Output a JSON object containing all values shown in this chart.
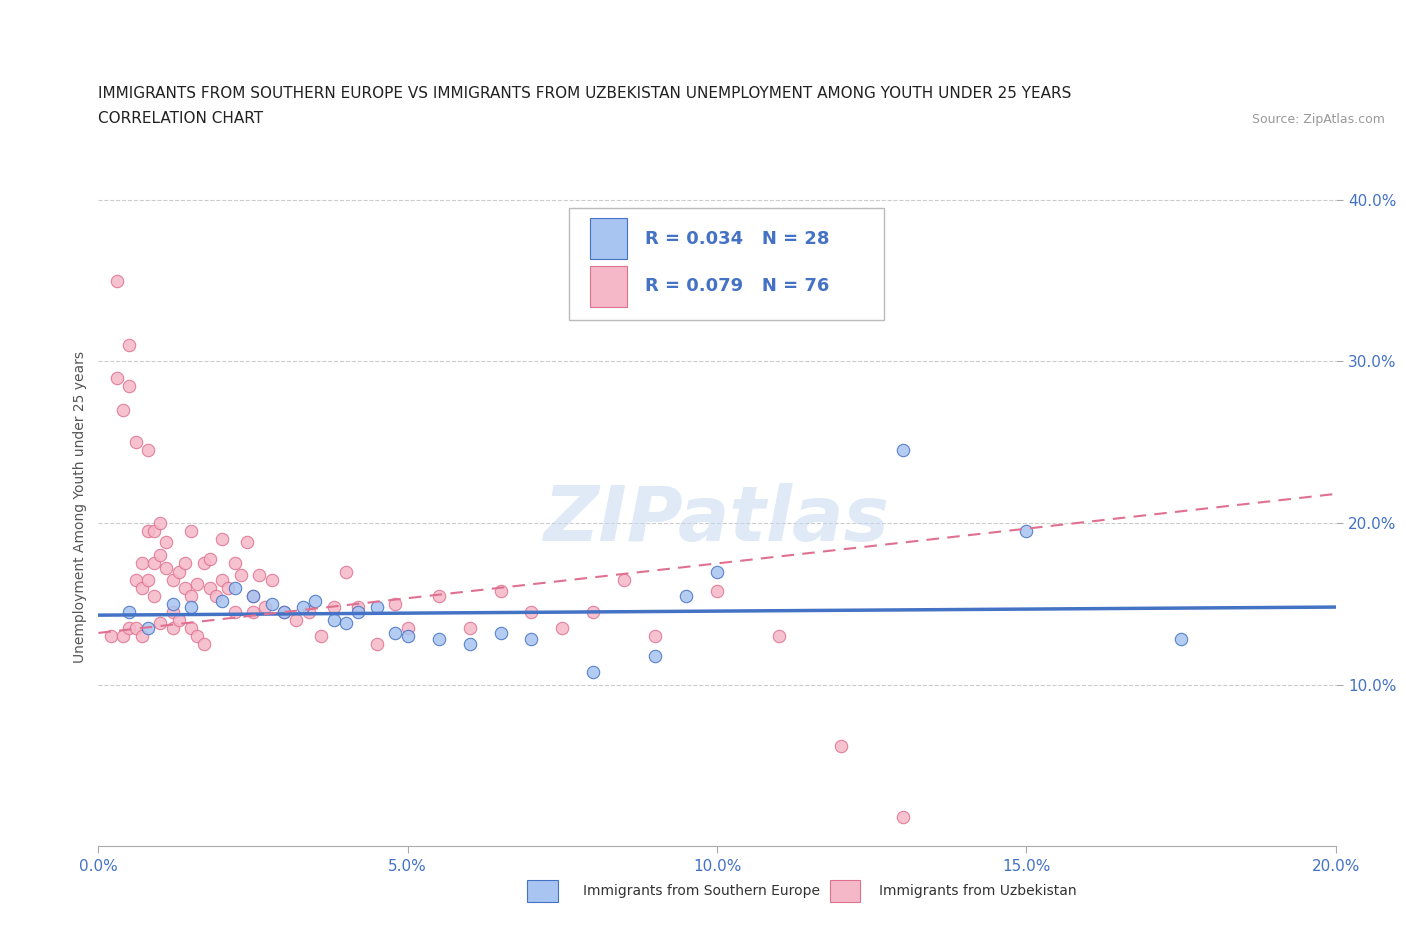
{
  "title_line1": "IMMIGRANTS FROM SOUTHERN EUROPE VS IMMIGRANTS FROM UZBEKISTAN UNEMPLOYMENT AMONG YOUTH UNDER 25 YEARS",
  "title_line2": "CORRELATION CHART",
  "source_text": "Source: ZipAtlas.com",
  "ylabel": "Unemployment Among Youth under 25 years",
  "xlim": [
    0.0,
    0.2
  ],
  "ylim": [
    0.0,
    0.42
  ],
  "ytick_labels": [
    "10.0%",
    "20.0%",
    "30.0%",
    "40.0%"
  ],
  "xtick_labels": [
    "0.0%",
    "5.0%",
    "10.0%",
    "15.0%",
    "20.0%"
  ],
  "color_blue": "#a8c4f0",
  "color_pink": "#f5b8c8",
  "line_color_blue": "#4472c4",
  "line_color_pink": "#e07090",
  "watermark": "ZIPatlas",
  "legend_r1": "R = 0.034",
  "legend_n1": "N = 28",
  "legend_r2": "R = 0.079",
  "legend_n2": "N = 76",
  "blue_scatter_x": [
    0.005,
    0.008,
    0.012,
    0.015,
    0.02,
    0.022,
    0.025,
    0.028,
    0.03,
    0.033,
    0.035,
    0.038,
    0.04,
    0.042,
    0.045,
    0.048,
    0.05,
    0.055,
    0.06,
    0.065,
    0.07,
    0.08,
    0.09,
    0.095,
    0.1,
    0.13,
    0.15,
    0.175
  ],
  "blue_scatter_y": [
    0.145,
    0.135,
    0.15,
    0.148,
    0.152,
    0.16,
    0.155,
    0.15,
    0.145,
    0.148,
    0.152,
    0.14,
    0.138,
    0.145,
    0.148,
    0.132,
    0.13,
    0.128,
    0.125,
    0.132,
    0.128,
    0.108,
    0.118,
    0.155,
    0.17,
    0.245,
    0.195,
    0.128
  ],
  "pink_scatter_x": [
    0.002,
    0.003,
    0.003,
    0.004,
    0.004,
    0.005,
    0.005,
    0.005,
    0.006,
    0.006,
    0.006,
    0.007,
    0.007,
    0.007,
    0.008,
    0.008,
    0.008,
    0.009,
    0.009,
    0.009,
    0.01,
    0.01,
    0.01,
    0.011,
    0.011,
    0.012,
    0.012,
    0.012,
    0.013,
    0.013,
    0.014,
    0.014,
    0.015,
    0.015,
    0.015,
    0.016,
    0.016,
    0.017,
    0.017,
    0.018,
    0.018,
    0.019,
    0.02,
    0.02,
    0.021,
    0.022,
    0.022,
    0.023,
    0.024,
    0.025,
    0.025,
    0.026,
    0.027,
    0.028,
    0.03,
    0.032,
    0.034,
    0.036,
    0.038,
    0.04,
    0.042,
    0.045,
    0.048,
    0.05,
    0.055,
    0.06,
    0.065,
    0.07,
    0.075,
    0.08,
    0.085,
    0.09,
    0.1,
    0.11,
    0.12,
    0.13
  ],
  "pink_scatter_y": [
    0.13,
    0.35,
    0.29,
    0.27,
    0.13,
    0.31,
    0.285,
    0.135,
    0.25,
    0.165,
    0.135,
    0.16,
    0.175,
    0.13,
    0.195,
    0.245,
    0.165,
    0.195,
    0.175,
    0.155,
    0.2,
    0.18,
    0.138,
    0.188,
    0.172,
    0.165,
    0.145,
    0.135,
    0.17,
    0.14,
    0.175,
    0.16,
    0.155,
    0.135,
    0.195,
    0.13,
    0.162,
    0.175,
    0.125,
    0.16,
    0.178,
    0.155,
    0.19,
    0.165,
    0.16,
    0.175,
    0.145,
    0.168,
    0.188,
    0.155,
    0.145,
    0.168,
    0.148,
    0.165,
    0.145,
    0.14,
    0.145,
    0.13,
    0.148,
    0.17,
    0.148,
    0.125,
    0.15,
    0.135,
    0.155,
    0.135,
    0.158,
    0.145,
    0.135,
    0.145,
    0.165,
    0.13,
    0.158,
    0.13,
    0.062,
    0.018
  ]
}
